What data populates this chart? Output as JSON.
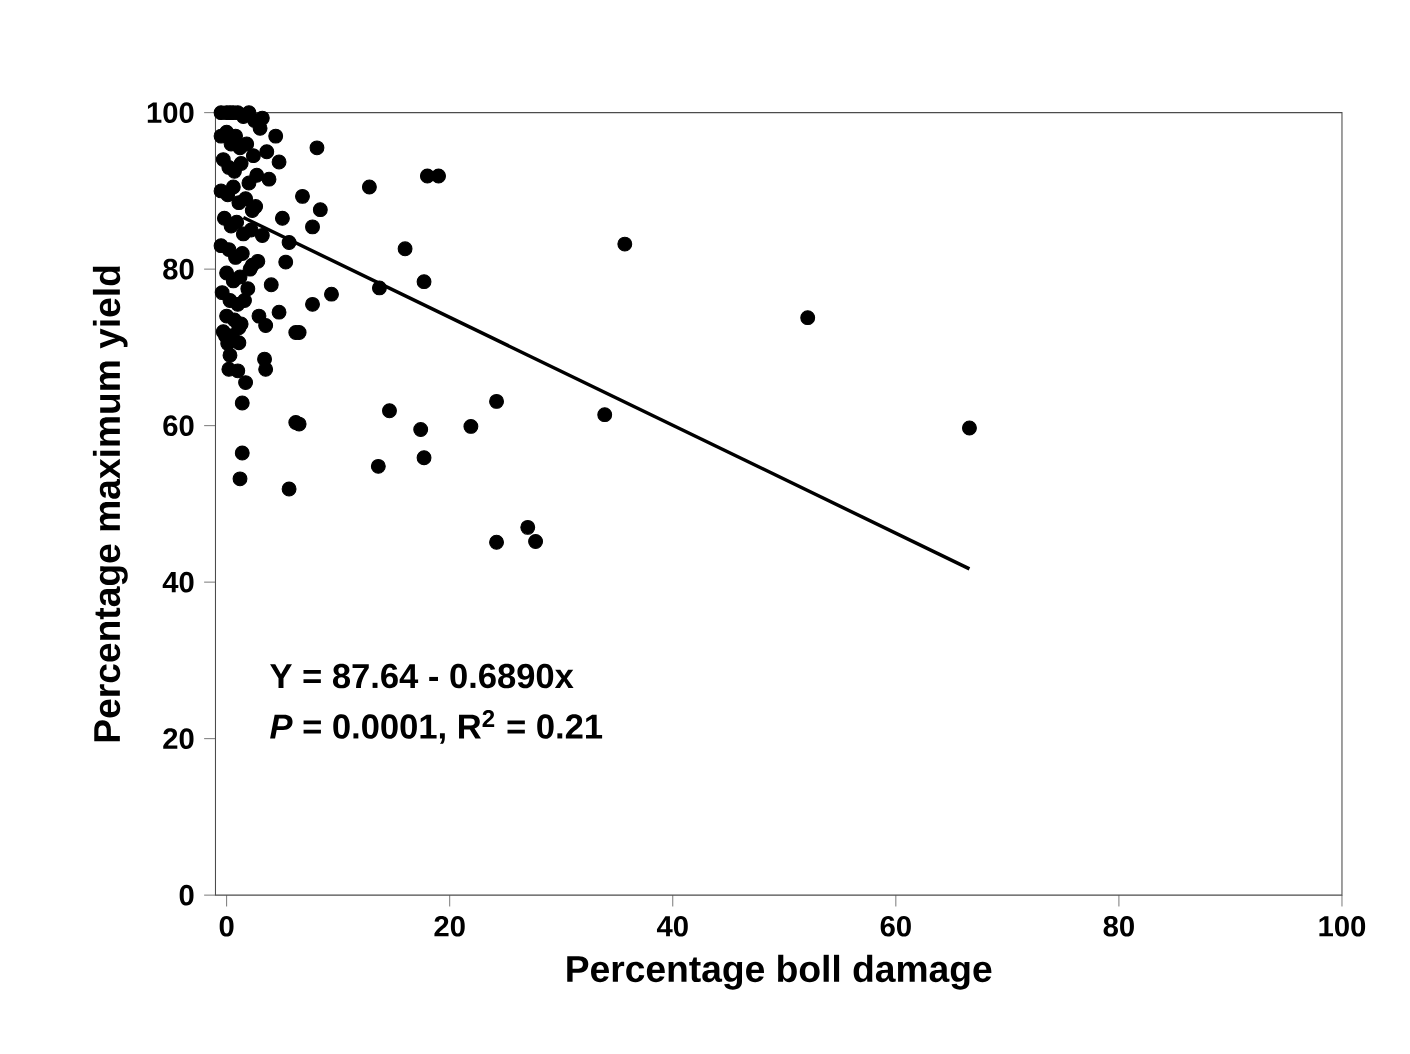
{
  "chart_data": {
    "type": "scatter",
    "xlabel": "Percentage boll damage",
    "ylabel": "Percentage maximum yield",
    "xlim": [
      -1,
      100
    ],
    "ylim": [
      0,
      100
    ],
    "xticks": [
      0,
      20,
      40,
      60,
      80,
      100
    ],
    "yticks": [
      0,
      20,
      40,
      60,
      80,
      100
    ],
    "grid": false,
    "annotations": [
      "Y = 87.64 - 0.6890x",
      "*P* = 0.0001, R$^{2}$ = 0.21"
    ],
    "series": [
      {
        "color": "#000000",
        "marker": "circle",
        "x": [
          8.1,
          18.0,
          19.0,
          12.8,
          6.8,
          8.4,
          7.7,
          16.0,
          35.7,
          13.7,
          17.7,
          7.7,
          9.4,
          6.5,
          52.1,
          14.6,
          24.2,
          6.5,
          17.4,
          21.9,
          33.9,
          66.6,
          13.6,
          17.7,
          24.2,
          27.0,
          27.7,
          0.2,
          1.7,
          3.4,
          3.5,
          1.4,
          6.2,
          1.4,
          1.2,
          5.6,
          4.7,
          6.2,
          2.9,
          -0.1,
          1.1,
          3.5,
          5.3,
          5.6,
          4.7,
          4.4,
          3.2,
          5.0,
          3.2,
          2.3,
          -0.5,
          0.0,
          0.3,
          0.6,
          1.0,
          1.5,
          2.0,
          2.5,
          3.0,
          -0.5,
          0.0,
          0.4,
          0.8,
          1.2,
          1.8,
          2.4,
          -0.3,
          0.2,
          0.7,
          1.3,
          2.0,
          2.7,
          -0.5,
          0.1,
          0.6,
          1.1,
          1.7,
          2.3,
          -0.2,
          0.4,
          0.9,
          1.5,
          2.2,
          -0.5,
          0.2,
          0.8,
          1.4,
          2.1,
          0.0,
          0.6,
          1.2,
          1.9,
          -0.4,
          0.3,
          1.0,
          1.6,
          0.0,
          0.7,
          1.3,
          -0.3,
          0.5,
          1.1,
          0.1,
          2.6,
          3.8,
          4.0,
          2.8,
          3.6,
          1.0,
          0.3
        ],
        "values": [
          95.5,
          91.9,
          91.9,
          90.5,
          89.3,
          87.6,
          85.4,
          82.6,
          83.2,
          77.6,
          78.4,
          75.5,
          76.8,
          71.9,
          73.8,
          61.9,
          63.1,
          60.2,
          59.5,
          59.9,
          61.4,
          59.7,
          54.8,
          55.9,
          45.1,
          47.0,
          45.2,
          67.2,
          65.5,
          68.5,
          67.2,
          62.9,
          60.4,
          56.5,
          53.2,
          51.9,
          74.5,
          71.9,
          74.0,
          71.5,
          70.6,
          72.8,
          80.9,
          83.4,
          93.7,
          97.0,
          99.3,
          86.5,
          84.3,
          80.5,
          100.0,
          100.0,
          100.0,
          100.0,
          100.0,
          99.5,
          100.0,
          99.0,
          98.0,
          97.0,
          97.5,
          96.0,
          97.0,
          95.5,
          96.0,
          94.5,
          94.0,
          93.0,
          92.5,
          93.5,
          91.0,
          92.0,
          90.0,
          89.5,
          90.5,
          88.5,
          89.0,
          87.5,
          86.5,
          85.5,
          86.0,
          84.5,
          85.0,
          83.0,
          82.5,
          81.5,
          82.0,
          80.0,
          79.5,
          78.5,
          79.0,
          77.5,
          77.0,
          76.0,
          75.5,
          76.0,
          74.0,
          73.5,
          73.0,
          72.0,
          71.5,
          72.5,
          70.5,
          88.0,
          91.5,
          78.0,
          81.0,
          95.0,
          67.0,
          69.0
        ]
      },
      {
        "type": "line",
        "color": "#000000",
        "marker": "none",
        "x": [
          1.5,
          66.6
        ],
        "values": [
          86.6,
          41.7
        ]
      }
    ]
  }
}
